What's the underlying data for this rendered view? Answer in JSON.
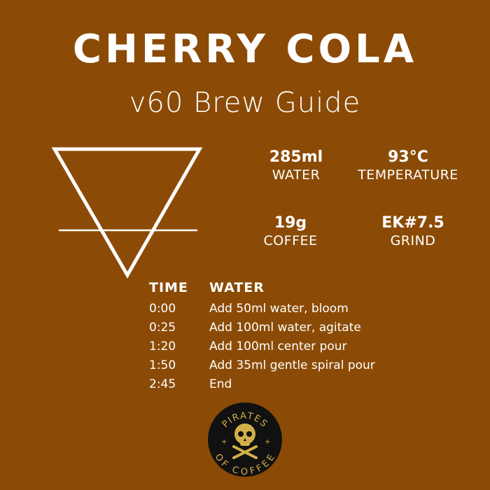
{
  "title": "CHERRY COLA",
  "subtitle": "v60 Brew Guide",
  "stats": [
    {
      "value": "285ml",
      "label": "WATER"
    },
    {
      "value": "93°C",
      "label": "TEMPERATURE"
    },
    {
      "value": "19g",
      "label": "COFFEE"
    },
    {
      "value": "EK#7.5",
      "label": "GRIND"
    }
  ],
  "table": {
    "headers": [
      "TIME",
      "WATER"
    ],
    "rows": [
      {
        "time": "0:00",
        "step": "Add 50ml water, bloom"
      },
      {
        "time": "0:25",
        "step": "Add 100ml water, agitate"
      },
      {
        "time": "1:20",
        "step": "Add 100ml center pour"
      },
      {
        "time": "1:50",
        "step": "Add 35ml gentle spiral pour"
      },
      {
        "time": "2:45",
        "step": "End"
      }
    ]
  },
  "logo": {
    "text_top": "PIRATES",
    "text_bottom": "OF COFFEE",
    "icon": "skull-crossbones-icon"
  },
  "colors": {
    "background": "#8b4b06",
    "text": "#ffffff",
    "logo_gold": "#d4b04a",
    "logo_bg": "#111111"
  }
}
